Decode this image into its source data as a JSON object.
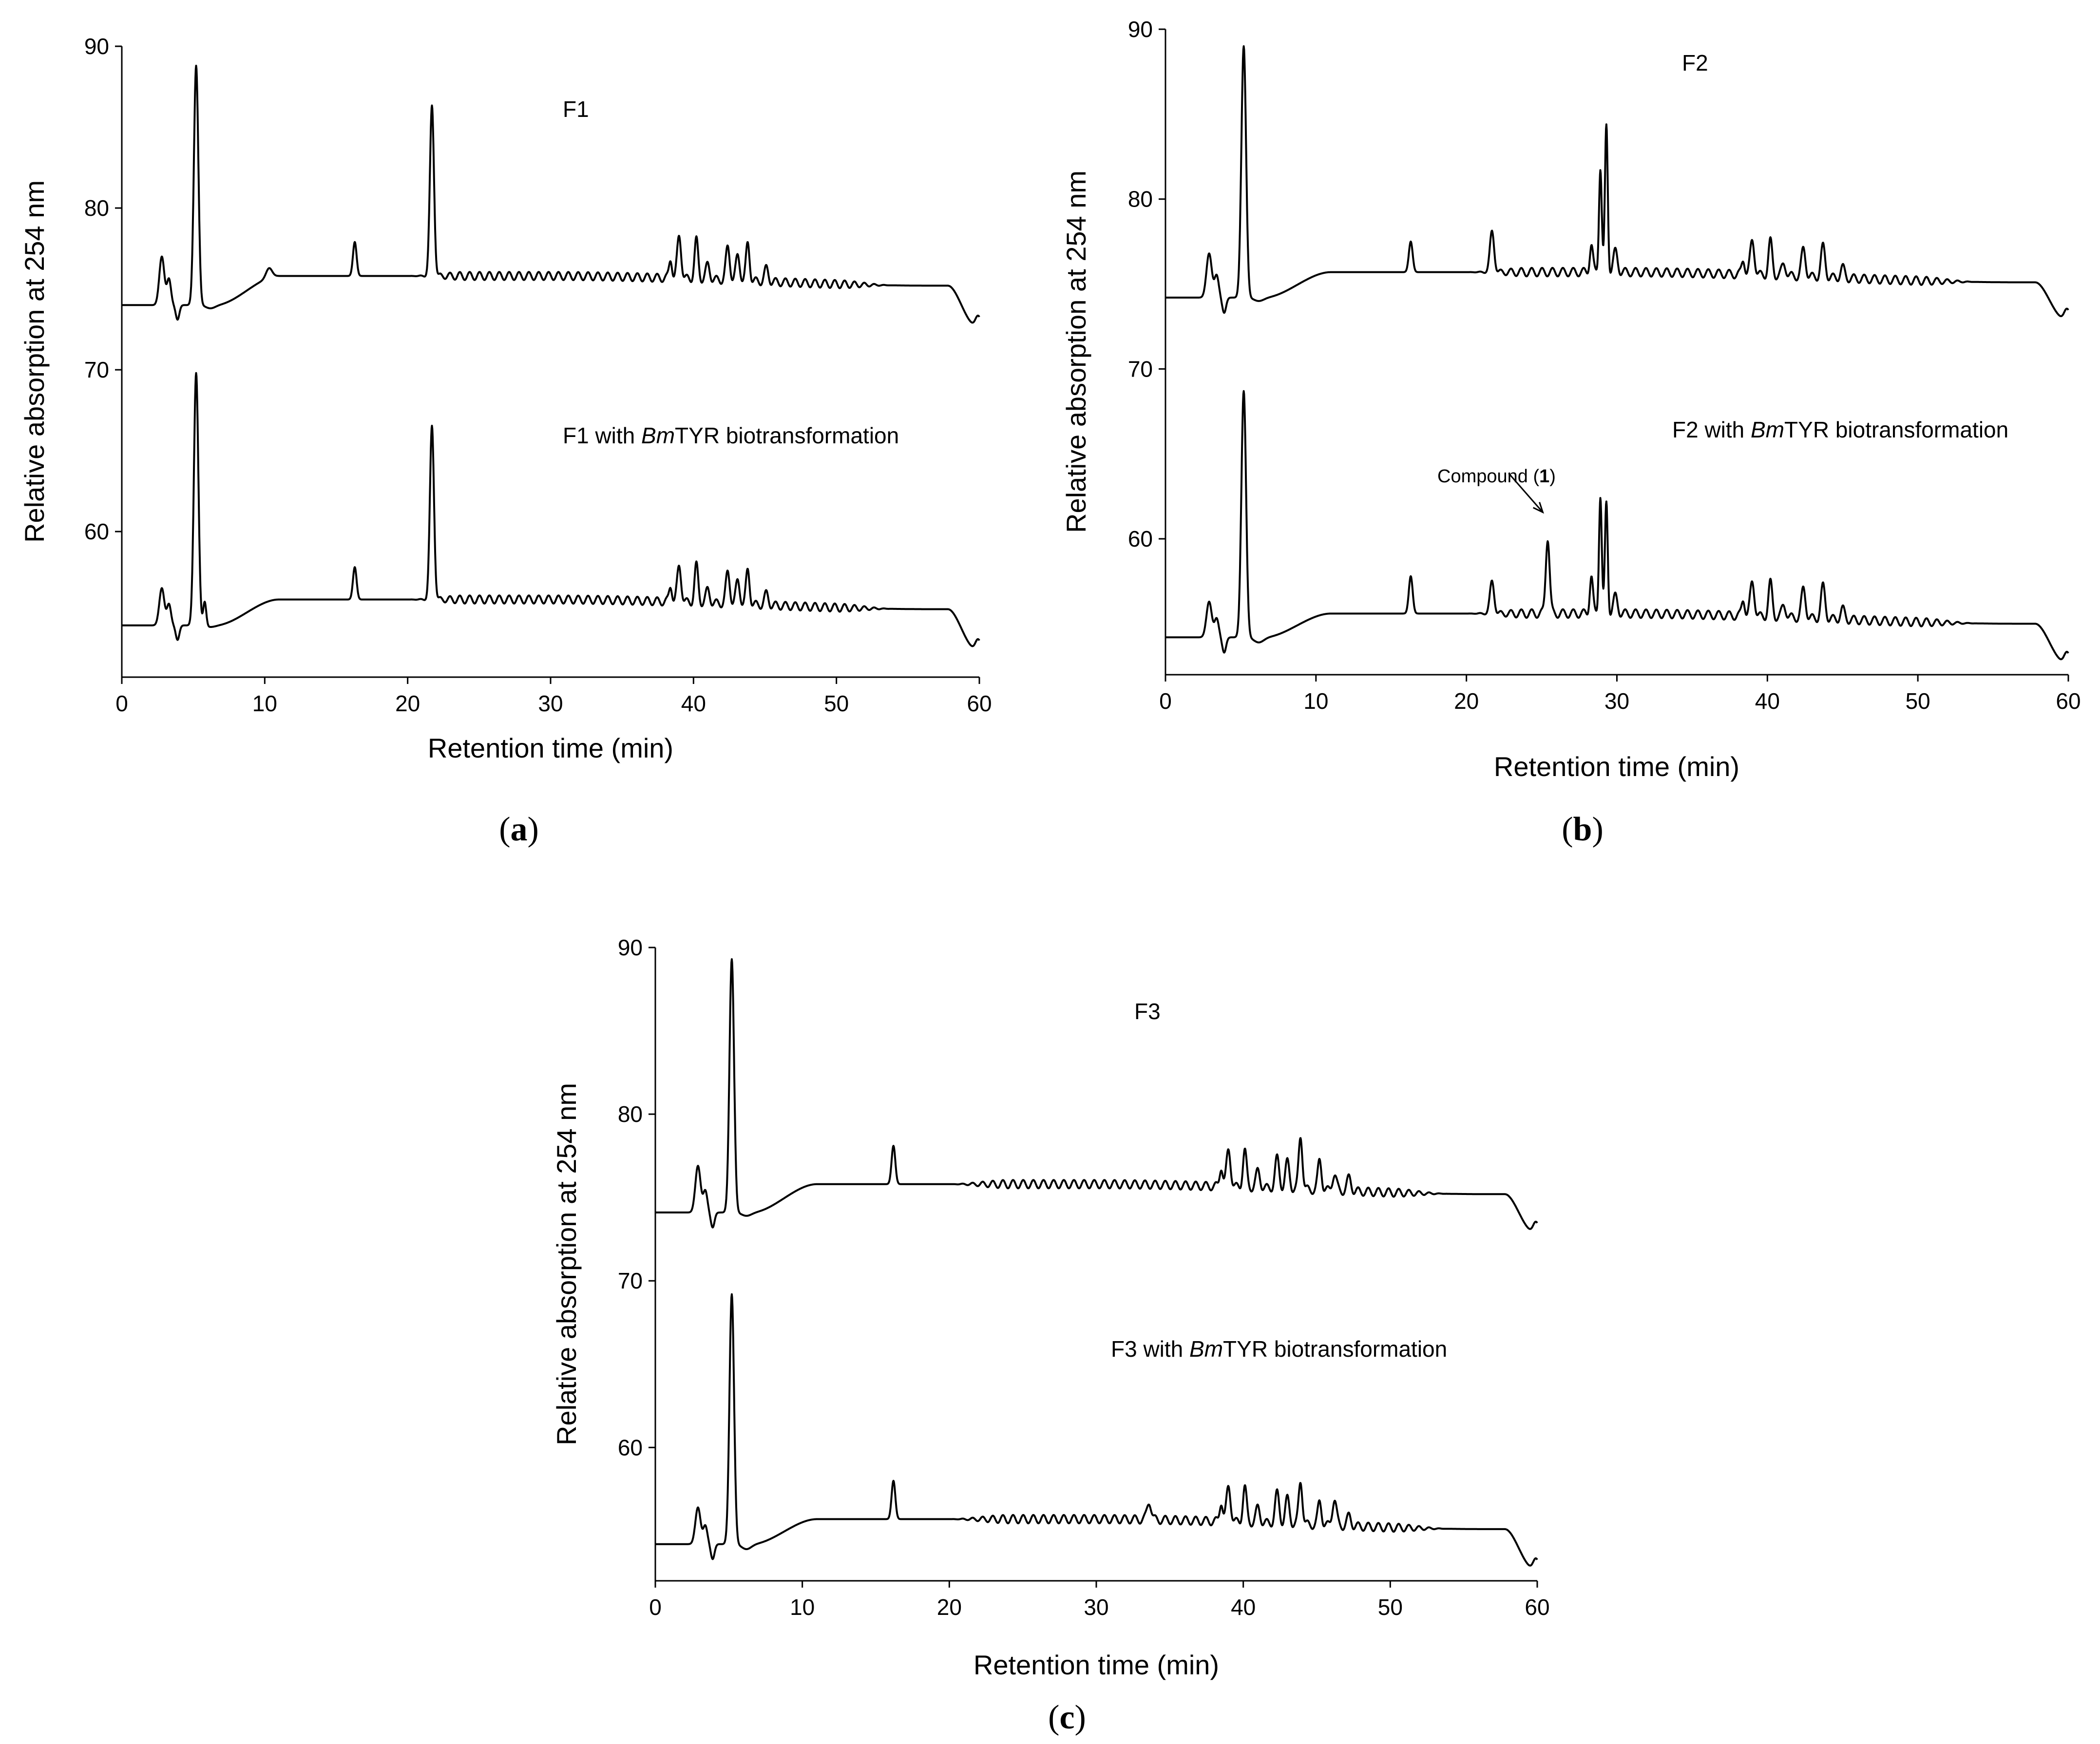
{
  "chart_data": [
    {
      "panel": "a",
      "panel_label": "a",
      "type": "line",
      "xlabel": "Retention time (min)",
      "ylabel": "Relative absorption at 254 nm",
      "xlim": [
        0,
        60
      ],
      "ylim": [
        51,
        90
      ],
      "x_ticks": [
        0,
        10,
        20,
        30,
        40,
        50,
        60
      ],
      "y_ticks": [
        60,
        70,
        80,
        90
      ],
      "series": [
        {
          "name": "F1",
          "label_prefix": "F1",
          "label_italic": "",
          "label_suffix": "",
          "baseline": 74,
          "plateau": 75.8,
          "end_drop": 72.8,
          "dip_at_6": 73.8,
          "peaks": [
            [
              2.8,
              3.0,
              0.25
            ],
            [
              3.3,
              1.6,
              0.2
            ],
            [
              5.2,
              14.8,
              0.22
            ],
            [
              10.3,
              0.6,
              0.3
            ],
            [
              16.3,
              2.1,
              0.18
            ],
            [
              21.7,
              10.5,
              0.2
            ],
            [
              38.4,
              1.2,
              0.15
            ],
            [
              39.0,
              2.6,
              0.2
            ],
            [
              40.2,
              2.4,
              0.18
            ],
            [
              41.0,
              0.9,
              0.2
            ],
            [
              42.4,
              2.0,
              0.2
            ],
            [
              43.1,
              1.5,
              0.2
            ],
            [
              43.8,
              2.3,
              0.18
            ],
            [
              45.1,
              0.8,
              0.2
            ]
          ]
        },
        {
          "name": "F1 with BmTYR biotransformation",
          "label_prefix": "F1 with ",
          "label_italic": "Bm",
          "label_suffix": "TYR biotransformation",
          "baseline": 54.2,
          "plateau": 55.8,
          "end_drop": 52.8,
          "dip_at_6": 54.1,
          "peaks": [
            [
              2.8,
              2.3,
              0.25
            ],
            [
              3.3,
              1.3,
              0.2
            ],
            [
              5.2,
              15.6,
              0.22
            ],
            [
              5.8,
              1.5,
              0.15
            ],
            [
              16.3,
              2.0,
              0.18
            ],
            [
              21.7,
              10.7,
              0.2
            ],
            [
              38.4,
              1.0,
              0.15
            ],
            [
              39.0,
              2.2,
              0.2
            ],
            [
              40.2,
              2.3,
              0.18
            ],
            [
              41.0,
              0.8,
              0.2
            ],
            [
              42.4,
              1.9,
              0.2
            ],
            [
              43.1,
              1.4,
              0.2
            ],
            [
              43.8,
              2.1,
              0.18
            ],
            [
              45.1,
              0.7,
              0.2
            ]
          ]
        }
      ]
    },
    {
      "panel": "b",
      "panel_label": "b",
      "type": "line",
      "xlabel": "Retention time (min)",
      "ylabel": "Relative absorption at 254 nm",
      "xlim": [
        0,
        60
      ],
      "ylim": [
        52,
        90
      ],
      "x_ticks": [
        0,
        10,
        20,
        30,
        40,
        50,
        60
      ],
      "y_ticks": [
        60,
        70,
        80,
        90
      ],
      "annotation": {
        "text_prefix": "Compound (",
        "text_bold": "1",
        "text_suffix": ")",
        "x": 25.4,
        "y": 60.7
      },
      "series": [
        {
          "name": "F2",
          "label_prefix": "F2",
          "label_italic": "",
          "label_suffix": "",
          "baseline": 74.2,
          "plateau": 75.7,
          "end_drop": 73,
          "dip_at_6": 74,
          "peaks": [
            [
              2.9,
              2.6,
              0.25
            ],
            [
              3.4,
              1.3,
              0.2
            ],
            [
              5.2,
              14.8,
              0.22
            ],
            [
              16.3,
              1.8,
              0.18
            ],
            [
              21.7,
              2.4,
              0.2
            ],
            [
              28.3,
              1.6,
              0.15
            ],
            [
              28.9,
              6.2,
              0.13
            ],
            [
              29.3,
              8.6,
              0.13
            ],
            [
              29.9,
              1.2,
              0.2
            ],
            [
              38.4,
              0.9,
              0.15
            ],
            [
              39.0,
              2.0,
              0.2
            ],
            [
              40.2,
              2.0,
              0.18
            ],
            [
              41.1,
              0.7,
              0.2
            ],
            [
              42.4,
              1.6,
              0.2
            ],
            [
              43.7,
              1.8,
              0.2
            ],
            [
              45.0,
              0.6,
              0.2
            ]
          ]
        },
        {
          "name": "F2 with BmTYR biotransformation",
          "label_prefix": "F2 with ",
          "label_italic": "Bm",
          "label_suffix": "TYR biotransformation",
          "baseline": 54.2,
          "plateau": 55.6,
          "end_drop": 52.8,
          "dip_at_6": 53.9,
          "peaks": [
            [
              2.9,
              2.1,
              0.25
            ],
            [
              3.4,
              1.1,
              0.2
            ],
            [
              5.2,
              14.5,
              0.22
            ],
            [
              16.3,
              2.2,
              0.18
            ],
            [
              21.7,
              1.9,
              0.2
            ],
            [
              25.4,
              4.5,
              0.18
            ],
            [
              28.3,
              2.2,
              0.15
            ],
            [
              28.9,
              7.0,
              0.13
            ],
            [
              29.3,
              6.5,
              0.13
            ],
            [
              29.9,
              1.0,
              0.2
            ],
            [
              38.4,
              1.0,
              0.15
            ],
            [
              39.0,
              2.0,
              0.2
            ],
            [
              40.2,
              2.0,
              0.18
            ],
            [
              41.1,
              0.7,
              0.2
            ],
            [
              42.4,
              1.7,
              0.2
            ],
            [
              43.7,
              1.9,
              0.2
            ],
            [
              45.0,
              0.6,
              0.2
            ]
          ]
        }
      ]
    },
    {
      "panel": "c",
      "panel_label": "c",
      "type": "line",
      "xlabel": "Retention time (min)",
      "ylabel": "Relative absorption at 254 nm",
      "xlim": [
        0,
        60
      ],
      "ylim": [
        52,
        90
      ],
      "x_ticks": [
        0,
        10,
        20,
        30,
        40,
        50,
        60
      ],
      "y_ticks": [
        60,
        70,
        80,
        90
      ],
      "series": [
        {
          "name": "F3",
          "label_prefix": "F3",
          "label_italic": "",
          "label_suffix": "",
          "baseline": 74.1,
          "plateau": 75.8,
          "end_drop": 73,
          "dip_at_6": 73.9,
          "peaks": [
            [
              2.9,
              2.8,
              0.25
            ],
            [
              3.4,
              1.3,
              0.2
            ],
            [
              5.2,
              15.2,
              0.22
            ],
            [
              16.2,
              2.3,
              0.18
            ],
            [
              38.5,
              1.2,
              0.15
            ],
            [
              39.0,
              2.2,
              0.2
            ],
            [
              40.1,
              2.2,
              0.18
            ],
            [
              41.0,
              1.0,
              0.2
            ],
            [
              42.3,
              1.8,
              0.2
            ],
            [
              43.0,
              1.6,
              0.2
            ],
            [
              43.9,
              3.2,
              0.18
            ],
            [
              45.2,
              1.8,
              0.18
            ],
            [
              46.2,
              1.0,
              0.2
            ],
            [
              47.2,
              0.8,
              0.2
            ]
          ]
        },
        {
          "name": "F3 with BmTYR biotransformation",
          "label_prefix": "F3 with ",
          "label_italic": "Bm",
          "label_suffix": "TYR biotransformation",
          "baseline": 54.2,
          "plateau": 55.7,
          "end_drop": 52.8,
          "dip_at_6": 53.9,
          "peaks": [
            [
              2.9,
              2.2,
              0.25
            ],
            [
              3.4,
              1.1,
              0.2
            ],
            [
              5.2,
              15.0,
              0.22
            ],
            [
              16.2,
              2.3,
              0.18
            ],
            [
              33.6,
              1.1,
              0.2
            ],
            [
              38.5,
              1.2,
              0.15
            ],
            [
              39.0,
              2.1,
              0.2
            ],
            [
              40.1,
              2.1,
              0.18
            ],
            [
              41.0,
              0.9,
              0.2
            ],
            [
              42.3,
              1.8,
              0.2
            ],
            [
              43.0,
              1.5,
              0.2
            ],
            [
              43.9,
              2.6,
              0.18
            ],
            [
              45.2,
              1.4,
              0.18
            ],
            [
              46.2,
              1.6,
              0.2
            ],
            [
              47.2,
              0.6,
              0.2
            ]
          ]
        }
      ]
    }
  ]
}
